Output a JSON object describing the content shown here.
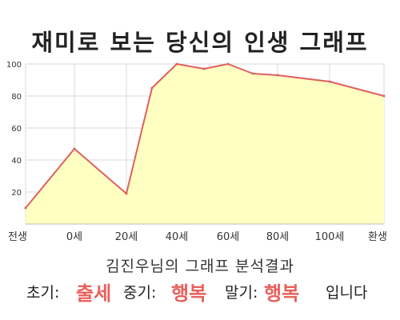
{
  "chart_data": {
    "type": "area",
    "title": "재미로 보는 당신의 인생 그래프",
    "x_labels": [
      "전생",
      "0세",
      "20세",
      "40세",
      "60세",
      "80세",
      "100세",
      "환생"
    ],
    "x": [
      "전생",
      "0세",
      "20세",
      "30세",
      "40세",
      "50세",
      "60세",
      "70세",
      "80세",
      "100세",
      "환생"
    ],
    "y": [
      10,
      47,
      19,
      85,
      100,
      97,
      100,
      94,
      93,
      89,
      80
    ],
    "ylim": [
      0,
      100
    ],
    "y_ticks": [
      20,
      40,
      60,
      80,
      100
    ],
    "grid": true,
    "colors": {
      "fill": "#ffffc2",
      "line": "#e06060",
      "grid": "#d8d8d8"
    }
  },
  "summary": {
    "result_title": "김진우님의 그래프 분석결과",
    "early_label": "초기:",
    "early_value": "출세",
    "middle_label": "중기:",
    "middle_value": "행복",
    "late_label": "말기:",
    "late_value": "행복",
    "ending": "입니다"
  }
}
